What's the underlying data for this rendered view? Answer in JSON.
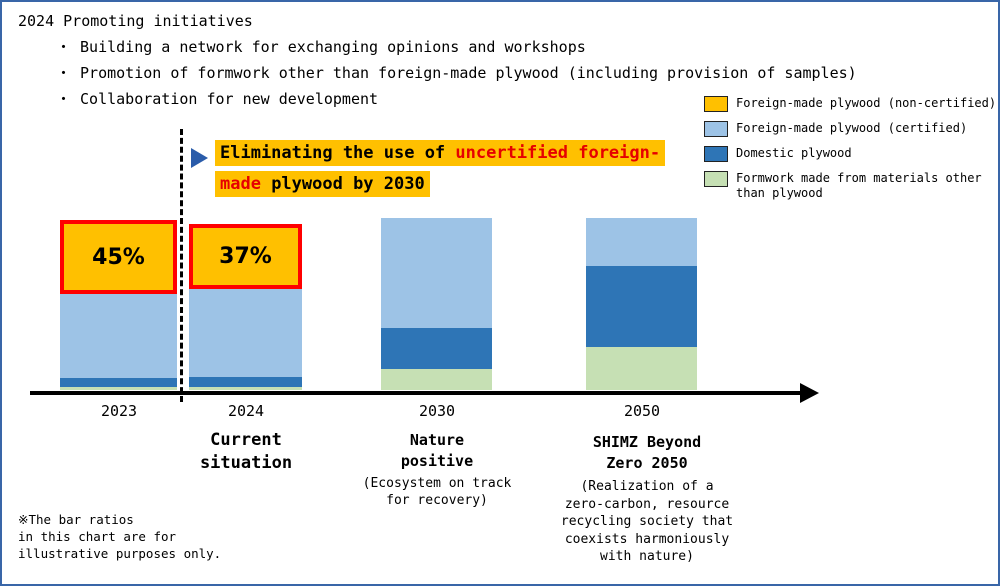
{
  "header": {
    "title": "2024 Promoting initiatives",
    "bullets": [
      "・ Building a network for exchanging opinions and workshops",
      "・ Promotion of formwork other than foreign-made plywood (including provision of samples)",
      "・ Collaboration for new development"
    ]
  },
  "callout": {
    "line1_black": "Eliminating the use of ",
    "line1_red": "uncertified foreign-",
    "line2_red": "made",
    "line2_black": " plywood by 2030",
    "highlight_color": "#FFC000",
    "red_color": "#E60000"
  },
  "chart_data": {
    "type": "bar",
    "stacked": true,
    "categories": [
      "2023",
      "2024",
      "2030",
      "2050"
    ],
    "unit": "percent (illustrative)",
    "series": [
      {
        "name": "Foreign-made plywood (non-certified)",
        "color": "#FFC000",
        "values": [
          43,
          38,
          0,
          0
        ],
        "highlight_border": "#FF0000"
      },
      {
        "name": "Foreign-made plywood (certified)",
        "color": "#9DC3E6",
        "values": [
          49,
          51,
          64,
          28
        ]
      },
      {
        "name": "Domestic plywood",
        "color": "#2E75B6",
        "values": [
          5,
          6,
          24,
          47
        ]
      },
      {
        "name": "Formwork made from materials other than plywood",
        "color": "#C6E0B4",
        "values": [
          2,
          2,
          12,
          25
        ]
      }
    ],
    "bar_value_labels": [
      {
        "category": "2023",
        "series": "Foreign-made plywood (non-certified)",
        "text": "45%"
      },
      {
        "category": "2024",
        "series": "Foreign-made plywood (non-certified)",
        "text": "37%"
      }
    ],
    "legend_position": "top-right",
    "note": "The bar ratios in this chart are for illustrative purposes only."
  },
  "annotations": {
    "current": {
      "title": "Current\nsituation"
    },
    "nature": {
      "title": "Nature\npositive",
      "subtitle": "(Ecosystem on track\nfor recovery)"
    },
    "shimz": {
      "title": "SHIMZ Beyond\nZero 2050",
      "subtitle": "(Realization of a\nzero-carbon, resource\nrecycling society that\ncoexists harmoniously\nwith nature)"
    }
  },
  "footnote": "※The bar ratios\nin this chart are for\nillustrative purposes only."
}
